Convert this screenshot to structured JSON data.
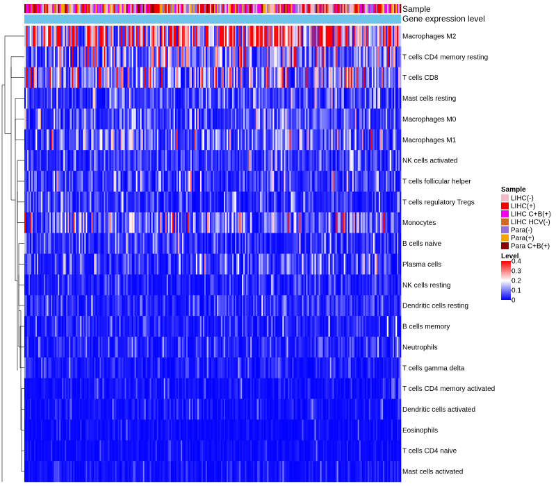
{
  "chart_data": {
    "type": "heatmap",
    "title": "",
    "annotations": {
      "sample_label": "Sample",
      "gene_expression_label": "Gene expression level",
      "gene_expression_color": "#6fc5e9"
    },
    "rows": [
      {
        "name": "Macrophages M2",
        "mean": 0.3
      },
      {
        "name": "T cells CD4 memory resting",
        "mean": 0.12
      },
      {
        "name": "T cells CD8",
        "mean": 0.14
      },
      {
        "name": "Mast cells resting",
        "mean": 0.06
      },
      {
        "name": "Macrophages M0",
        "mean": 0.07
      },
      {
        "name": "Macrophages M1",
        "mean": 0.09
      },
      {
        "name": "NK cells activated",
        "mean": 0.05
      },
      {
        "name": "T cells follicular helper",
        "mean": 0.06
      },
      {
        "name": "T cells regulatory  Tregs",
        "mean": 0.04
      },
      {
        "name": "Monocytes",
        "mean": 0.1
      },
      {
        "name": "B cells naive",
        "mean": 0.04
      },
      {
        "name": "Plasma cells",
        "mean": 0.06
      },
      {
        "name": "NK cells resting",
        "mean": 0.03
      },
      {
        "name": "Dendritic cells resting",
        "mean": 0.04
      },
      {
        "name": "B cells memory",
        "mean": 0.03
      },
      {
        "name": "Neutrophils",
        "mean": 0.03
      },
      {
        "name": "T cells gamma delta",
        "mean": 0.02
      },
      {
        "name": "T cells CD4 memory activated",
        "mean": 0.015
      },
      {
        "name": "Dendritic cells activated",
        "mean": 0.015
      },
      {
        "name": "Eosinophils",
        "mean": 0.01
      },
      {
        "name": "T cells CD4 naive",
        "mean": 0.01
      },
      {
        "name": "Mast cells activated",
        "mean": 0.015
      }
    ],
    "n_samples": 270,
    "sample_legend": {
      "title": "Sample",
      "entries": [
        {
          "label": "LIHC(-)",
          "color": "#f4b9c7"
        },
        {
          "label": "LIHC(+)",
          "color": "#ee0000"
        },
        {
          "label": "LIHC C+B(+)",
          "color": "#ee00ee"
        },
        {
          "label": "LIHC HCV(-)",
          "color": "#d2691e"
        },
        {
          "label": "Para(-)",
          "color": "#9370db"
        },
        {
          "label": "Para(+)",
          "color": "#f5a500"
        },
        {
          "label": "Para C+B(+)",
          "color": "#8b0000"
        }
      ]
    },
    "level_legend": {
      "title": "Level",
      "range": [
        0,
        0.4
      ],
      "ticks": [
        "0.4",
        "0.3",
        "0.2",
        "0.1",
        "0"
      ],
      "colors": {
        "low": "#0000ff",
        "mid": "#ffffff",
        "high": "#ff0000"
      }
    }
  }
}
